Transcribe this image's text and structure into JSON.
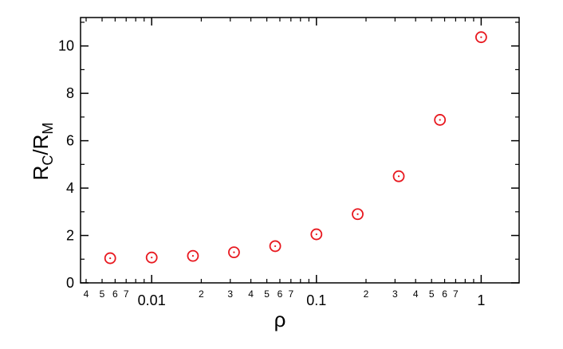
{
  "chart_data": {
    "type": "scatter",
    "xscale": "log",
    "xlim": [
      0.0037,
      1.7
    ],
    "ylim": [
      0,
      11.2
    ],
    "grid": false,
    "xlabel": "ρ",
    "ylabel": {
      "main": "R",
      "sub1": "C",
      "sep": "/R",
      "sub2": "M"
    },
    "x_major_ticks": [
      {
        "value": 0.01,
        "label": "0.01"
      },
      {
        "value": 0.1,
        "label": "0.1"
      },
      {
        "value": 1,
        "label": "1"
      }
    ],
    "x_minor_labeled": [
      {
        "value": 0.004,
        "label": "4"
      },
      {
        "value": 0.005,
        "label": "5"
      },
      {
        "value": 0.006,
        "label": "6"
      },
      {
        "value": 0.007,
        "label": "7"
      },
      {
        "value": 0.02,
        "label": "2"
      },
      {
        "value": 0.03,
        "label": "3"
      },
      {
        "value": 0.04,
        "label": "4"
      },
      {
        "value": 0.05,
        "label": "5"
      },
      {
        "value": 0.06,
        "label": "6"
      },
      {
        "value": 0.07,
        "label": "7"
      },
      {
        "value": 0.2,
        "label": "2"
      },
      {
        "value": 0.3,
        "label": "3"
      },
      {
        "value": 0.4,
        "label": "4"
      },
      {
        "value": 0.5,
        "label": "5"
      },
      {
        "value": 0.6,
        "label": "6"
      },
      {
        "value": 0.7,
        "label": "7"
      }
    ],
    "y_ticks": [
      0,
      2,
      4,
      6,
      8,
      10
    ],
    "series": [
      {
        "marker": "open-circle-with-dot",
        "color": "#e8181f",
        "points": [
          {
            "x": 0.0056,
            "y": 1.04
          },
          {
            "x": 0.01,
            "y": 1.07
          },
          {
            "x": 0.0178,
            "y": 1.14
          },
          {
            "x": 0.0316,
            "y": 1.29
          },
          {
            "x": 0.0562,
            "y": 1.55
          },
          {
            "x": 0.1,
            "y": 2.05
          },
          {
            "x": 0.178,
            "y": 2.9
          },
          {
            "x": 0.316,
            "y": 4.5
          },
          {
            "x": 0.562,
            "y": 6.88
          },
          {
            "x": 1.0,
            "y": 10.37
          }
        ]
      }
    ]
  }
}
